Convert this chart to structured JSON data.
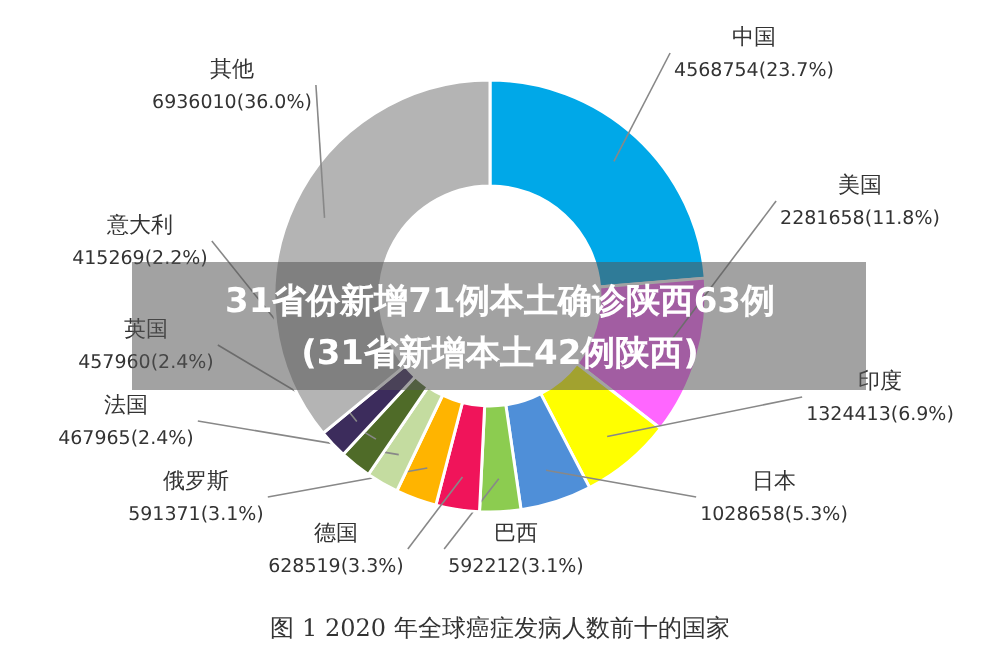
{
  "chart_data": {
    "type": "donut",
    "title": "图 1 2020 年全球癌症发病人数前十的国家",
    "annotations": [
      "31省份新增71例本土确诊陕西63例",
      "(31省新增本土42例陕西)"
    ],
    "categories": [
      "中国",
      "美国",
      "印度",
      "日本",
      "巴西",
      "德国",
      "俄罗斯",
      "法国",
      "英国",
      "意大利",
      "其他"
    ],
    "values": [
      4568754,
      2281658,
      1324413,
      1028658,
      592212,
      628519,
      591371,
      467965,
      457960,
      415269,
      6936010
    ],
    "value_labels": [
      "4568754(23.7%)",
      "2281658(11.8%)",
      "1324413(6.9%)",
      "1028658(5.3%)",
      "592212(3.1%)",
      "628519(3.3%)",
      "591371(3.1%)",
      "467965(2.4%)",
      "457960(2.4%)",
      "415269(2.2%)",
      "6936010(36.0%)"
    ],
    "colors": [
      "#00a8e8",
      "#ff66ff",
      "#ffff00",
      "#4f8fd8",
      "#8ccc50",
      "#f0145a",
      "#ffb400",
      "#c4dca0",
      "#4f6b28",
      "#3c2c5c",
      "#b4b4b4"
    ]
  }
}
